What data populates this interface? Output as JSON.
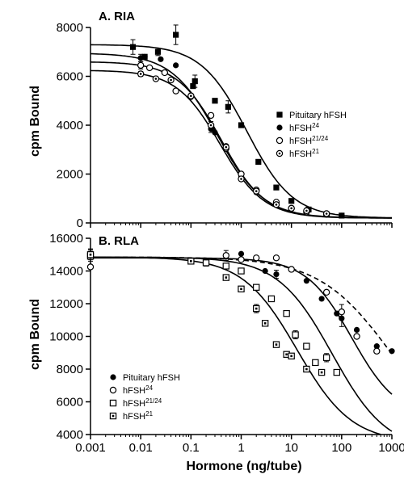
{
  "x_axis": {
    "label": "Hormone (ng/tube)",
    "scale": "log",
    "range": [
      0.001,
      1000
    ],
    "tick_values": [
      0.001,
      0.01,
      0.1,
      1,
      10,
      100,
      1000
    ],
    "tick_labels": [
      "0.001",
      "0.01",
      "0.1",
      "1",
      "10",
      "100",
      "1000"
    ]
  },
  "chart_data": [
    {
      "type": "scatter",
      "title": "A. RIA",
      "ylabel": "cpm Bound",
      "ylim": [
        0,
        8000
      ],
      "y_ticks": [
        0,
        2000,
        4000,
        6000,
        8000
      ],
      "y_tick_labels": [
        "0",
        "2000",
        "4000",
        "6000",
        "8000"
      ],
      "legend_position": "right",
      "series": [
        {
          "name": "Pituitary hFSH",
          "name_sup": "",
          "marker": "filled-square",
          "points": [
            [
              0.007,
              7200
            ],
            [
              0.012,
              6800
            ],
            [
              0.022,
              7000
            ],
            [
              0.05,
              7700
            ],
            [
              0.11,
              5600
            ],
            [
              0.12,
              5800
            ],
            [
              0.3,
              5000
            ],
            [
              0.55,
              4750
            ],
            [
              1,
              4000
            ],
            [
              2.2,
              2500
            ],
            [
              5,
              1450
            ],
            [
              10,
              900
            ],
            [
              22,
              550
            ],
            [
              50,
              350
            ],
            [
              100,
              300
            ]
          ],
          "error_bars": [
            [
              0.007,
              300
            ],
            [
              0.022,
              150
            ],
            [
              0.05,
              400
            ],
            [
              0.12,
              250
            ],
            [
              0.55,
              250
            ]
          ],
          "fit": {
            "top": 7300,
            "bottom": 200,
            "ic50": 1.3,
            "hill": 0.95
          },
          "fit_dash": false
        },
        {
          "name": "hFSH",
          "name_sup": "24",
          "marker": "filled-circle",
          "points": [
            [
              0.01,
              6750
            ],
            [
              0.012,
              6800
            ],
            [
              0.025,
              6700
            ],
            [
              0.05,
              6450
            ],
            [
              0.1,
              5150
            ],
            [
              0.25,
              3850
            ],
            [
              0.3,
              3700
            ],
            [
              0.5,
              3150
            ],
            [
              1,
              1900
            ],
            [
              2,
              1250
            ],
            [
              5,
              750
            ],
            [
              10,
              600
            ],
            [
              20,
              450
            ],
            [
              50,
              350
            ],
            [
              100,
              300
            ]
          ],
          "error_bars": [
            [
              0.01,
              150
            ],
            [
              0.25,
              150
            ]
          ],
          "fit": {
            "top": 6950,
            "bottom": 200,
            "ic50": 0.34,
            "hill": 0.95
          },
          "fit_dash": false
        },
        {
          "name": "hFSH",
          "name_sup": "21/24",
          "marker": "open-circle",
          "points": [
            [
              0.01,
              6450
            ],
            [
              0.015,
              6350
            ],
            [
              0.03,
              6150
            ],
            [
              0.05,
              5400
            ],
            [
              0.1,
              5200
            ],
            [
              0.25,
              4400
            ],
            [
              0.5,
              3050
            ],
            [
              1,
              2000
            ],
            [
              2,
              1350
            ],
            [
              5,
              850
            ],
            [
              10,
              600
            ],
            [
              20,
              450
            ],
            [
              50,
              350
            ]
          ],
          "error_bars": [
            [
              0.01,
              150
            ]
          ],
          "fit": {
            "top": 6600,
            "bottom": 200,
            "ic50": 0.4,
            "hill": 1.0
          },
          "fit_dash": false
        },
        {
          "name": "hFSH",
          "name_sup": "21",
          "marker": "dotted-circle",
          "points": [
            [
              0.01,
              6100
            ],
            [
              0.02,
              5900
            ],
            [
              0.04,
              5850
            ],
            [
              0.1,
              5200
            ],
            [
              0.25,
              4000
            ],
            [
              0.5,
              3100
            ],
            [
              1,
              1800
            ],
            [
              2,
              1300
            ],
            [
              5,
              750
            ],
            [
              10,
              600
            ],
            [
              20,
              500
            ],
            [
              50,
              380
            ]
          ],
          "error_bars": [
            [
              0.01,
              100
            ],
            [
              0.25,
              150
            ]
          ],
          "fit": {
            "top": 6250,
            "bottom": 200,
            "ic50": 0.38,
            "hill": 1.0
          },
          "fit_dash": false
        }
      ]
    },
    {
      "type": "scatter",
      "title": "B. RLA",
      "ylabel": "cpm Bound",
      "ylim": [
        4000,
        16000
      ],
      "y_ticks": [
        4000,
        6000,
        8000,
        10000,
        12000,
        14000,
        16000
      ],
      "y_tick_labels": [
        "4000",
        "6000",
        "8000",
        "10000",
        "12000",
        "14000",
        "16000"
      ],
      "legend_position": "bottom-left",
      "series": [
        {
          "name": "Pituitary hFSH",
          "name_sup": "",
          "marker": "filled-circle",
          "points": [
            [
              0.001,
              15050
            ],
            [
              1,
              15050
            ],
            [
              3,
              14000
            ],
            [
              5,
              13800
            ],
            [
              20,
              13400
            ],
            [
              40,
              12300
            ],
            [
              80,
              11400
            ],
            [
              100,
              11100
            ],
            [
              200,
              10400
            ],
            [
              500,
              9400
            ],
            [
              1000,
              9100
            ]
          ],
          "error_bars": [
            [
              0.001,
              300
            ],
            [
              5,
              250
            ],
            [
              100,
              500
            ]
          ],
          "fit": {
            "top": 14850,
            "bottom": 3000,
            "ic50": 1000,
            "hill": 0.6
          },
          "fit_dash": true
        },
        {
          "name": "hFSH",
          "name_sup": "24",
          "marker": "open-circle",
          "points": [
            [
              0.001,
              14250
            ],
            [
              0.5,
              14950
            ],
            [
              1,
              14700
            ],
            [
              2,
              14800
            ],
            [
              5,
              14800
            ],
            [
              10,
              14100
            ],
            [
              50,
              12700
            ],
            [
              100,
              11500
            ],
            [
              200,
              10000
            ],
            [
              500,
              9100
            ]
          ],
          "error_bars": [
            [
              0.5,
              300
            ],
            [
              100,
              450
            ]
          ],
          "fit": {
            "top": 14800,
            "bottom": 5000,
            "ic50": 160,
            "hill": 0.95
          },
          "fit_dash": false
        },
        {
          "name": "hFSH",
          "name_sup": "21/24",
          "marker": "open-square",
          "points": [
            [
              0.001,
              14900
            ],
            [
              0.2,
              14500
            ],
            [
              0.5,
              14300
            ],
            [
              1,
              14000
            ],
            [
              2,
              13000
            ],
            [
              4,
              12300
            ],
            [
              8,
              11400
            ],
            [
              12,
              10100
            ],
            [
              20,
              9400
            ],
            [
              30,
              8400
            ],
            [
              50,
              8700
            ],
            [
              80,
              7800
            ]
          ],
          "error_bars": [
            [
              0.001,
              300
            ],
            [
              0.2,
              200
            ],
            [
              12,
              250
            ],
            [
              50,
              250
            ]
          ],
          "fit": {
            "top": 14850,
            "bottom": 3000,
            "ic50": 65,
            "hill": 0.8
          },
          "fit_dash": false
        },
        {
          "name": "hFSH",
          "name_sup": "21",
          "marker": "dotted-square",
          "points": [
            [
              0.001,
              15000
            ],
            [
              0.1,
              14600
            ],
            [
              0.5,
              13600
            ],
            [
              1,
              12900
            ],
            [
              2,
              11700
            ],
            [
              3,
              10800
            ],
            [
              5,
              9500
            ],
            [
              8,
              8900
            ],
            [
              10,
              8800
            ],
            [
              20,
              8000
            ],
            [
              40,
              7800
            ]
          ],
          "error_bars": [
            [
              0.001,
              300
            ],
            [
              2,
              250
            ]
          ],
          "fit": {
            "top": 14850,
            "bottom": 3500,
            "ic50": 13,
            "hill": 0.8
          },
          "fit_dash": false
        }
      ]
    }
  ]
}
